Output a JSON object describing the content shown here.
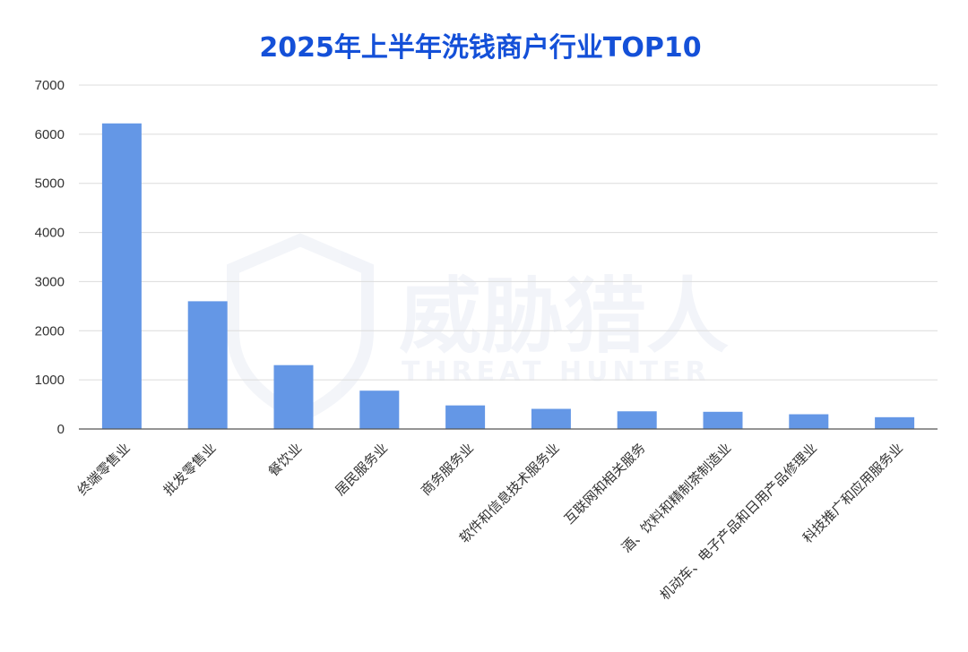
{
  "chart_data": {
    "type": "bar",
    "title": "2025年上半年洗钱商户行业TOP10",
    "categories": [
      "终端零售业",
      "批发零售业",
      "餐饮业",
      "居民服务业",
      "商务服务业",
      "软件和信息技术服务业",
      "互联网和相关服务",
      "酒、饮料和精制茶制造业",
      "机动车、电子产品和日用产品修理业",
      "科技推广和应用服务业"
    ],
    "values": [
      6220,
      2600,
      1300,
      780,
      480,
      410,
      360,
      350,
      300,
      240
    ],
    "ylim": [
      0,
      7000
    ],
    "yticks": [
      0,
      1000,
      2000,
      3000,
      4000,
      5000,
      6000,
      7000
    ],
    "grid": true,
    "bar_color": "#6497e6",
    "title_color": "#1450d8"
  },
  "watermark": {
    "cn": "威胁猎人",
    "en": "THREAT HUNTER"
  }
}
